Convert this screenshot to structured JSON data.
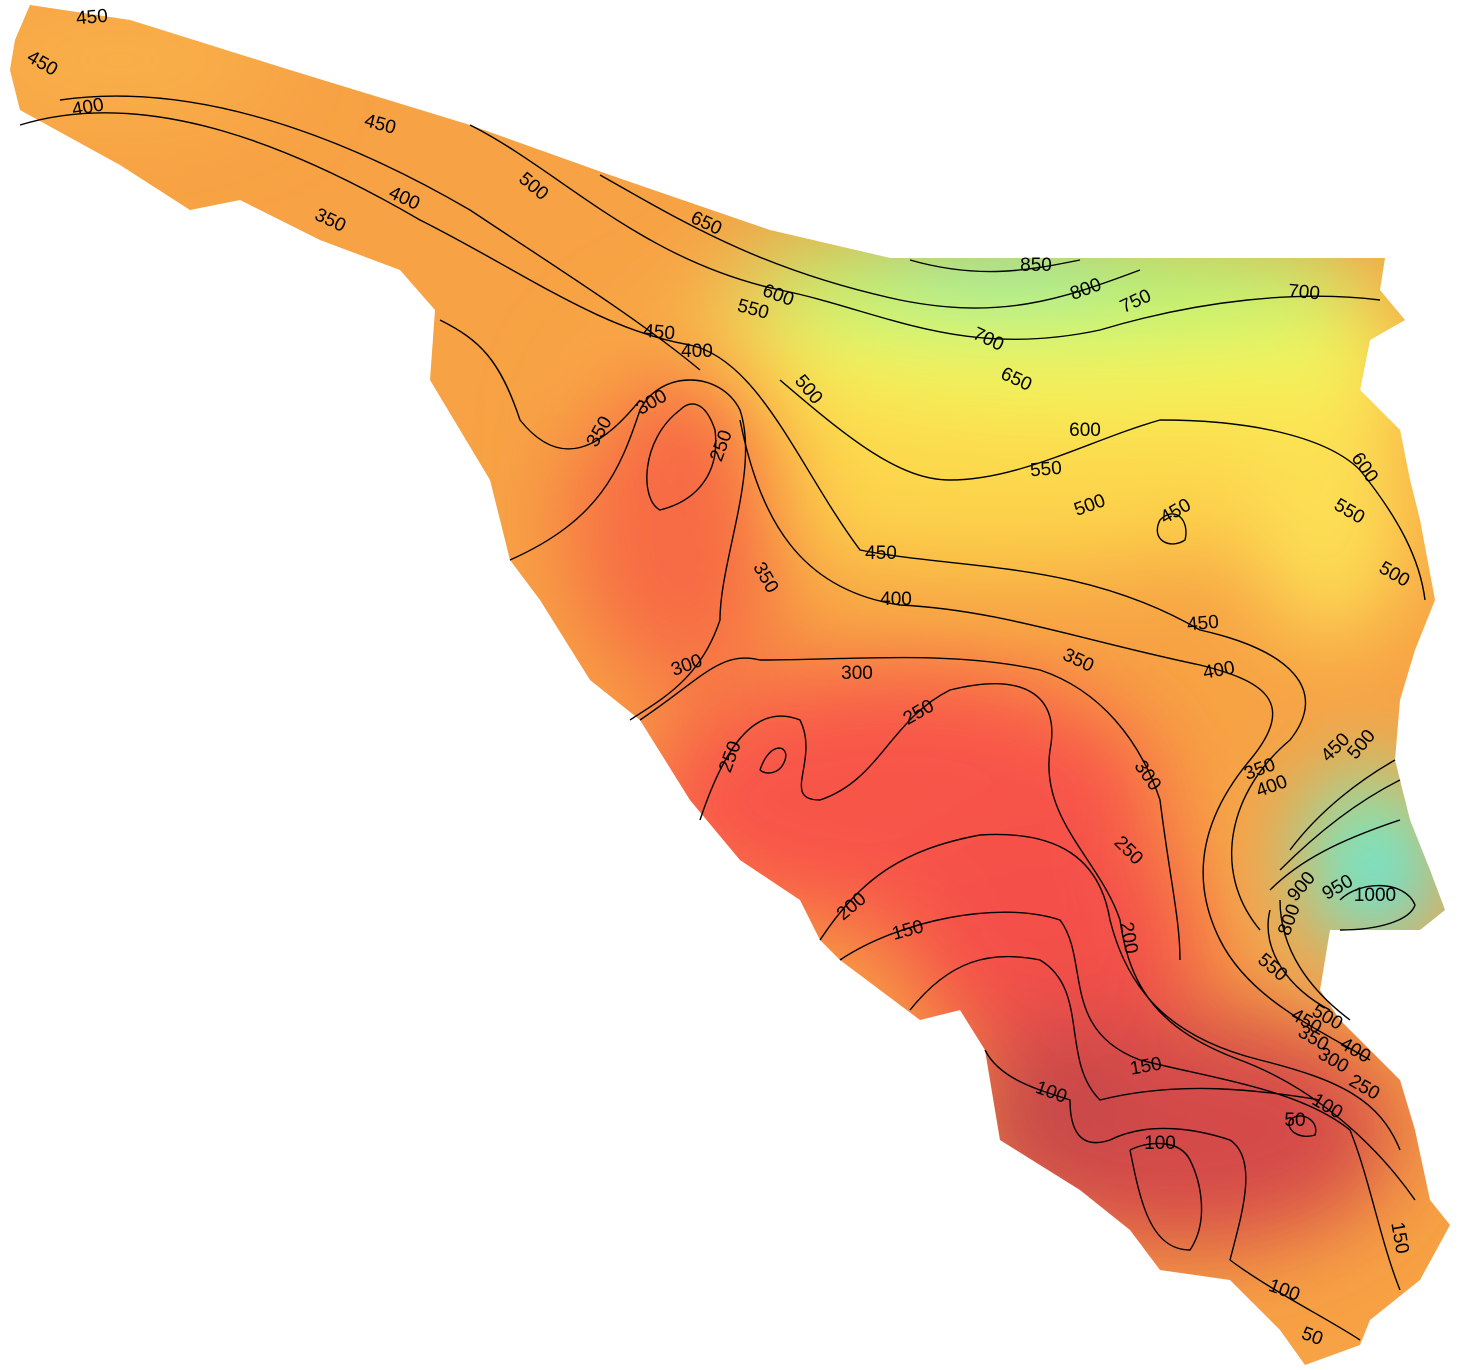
{
  "contour_labels": [
    450,
    450,
    400,
    450,
    400,
    350,
    500,
    650,
    850,
    800,
    750,
    700,
    600,
    550,
    450,
    400,
    700,
    650,
    500,
    300,
    350,
    250,
    600,
    550,
    600,
    500,
    450,
    550,
    450,
    350,
    500,
    400,
    450,
    350,
    400,
    300,
    300,
    250,
    250,
    300,
    350,
    400,
    450,
    500,
    250,
    200,
    150,
    200,
    1000,
    950,
    900,
    800,
    550,
    500,
    450,
    400,
    350,
    300,
    250,
    150,
    100,
    100,
    50,
    100,
    150,
    100,
    50
  ]
}
